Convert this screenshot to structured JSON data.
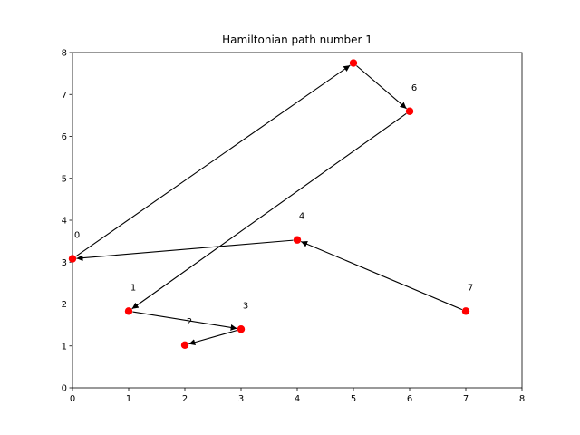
{
  "chart_data": {
    "type": "scatter",
    "title": "Hamiltonian path number 1",
    "xlabel": "",
    "ylabel": "",
    "xlim": [
      0,
      8
    ],
    "ylim": [
      0,
      8
    ],
    "xticks": [
      "0",
      "1",
      "2",
      "3",
      "4",
      "5",
      "6",
      "7",
      "8"
    ],
    "yticks": [
      "0",
      "1",
      "2",
      "3",
      "4",
      "5",
      "6",
      "7",
      "8"
    ],
    "grid": false,
    "point_color": "#ff0000",
    "edge_color": "#000000",
    "nodes": [
      {
        "label": "0",
        "x": 0.0,
        "y": 3.08
      },
      {
        "label": "1",
        "x": 1.0,
        "y": 1.83
      },
      {
        "label": "2",
        "x": 2.0,
        "y": 1.02
      },
      {
        "label": "3",
        "x": 3.0,
        "y": 1.4
      },
      {
        "label": "4",
        "x": 4.0,
        "y": 3.53
      },
      {
        "label": "",
        "x": 5.0,
        "y": 7.75
      },
      {
        "label": "6",
        "x": 6.0,
        "y": 6.6
      },
      {
        "label": "7",
        "x": 7.0,
        "y": 1.83
      }
    ],
    "path": [
      7,
      4,
      0,
      5,
      6,
      1,
      3,
      2
    ]
  }
}
